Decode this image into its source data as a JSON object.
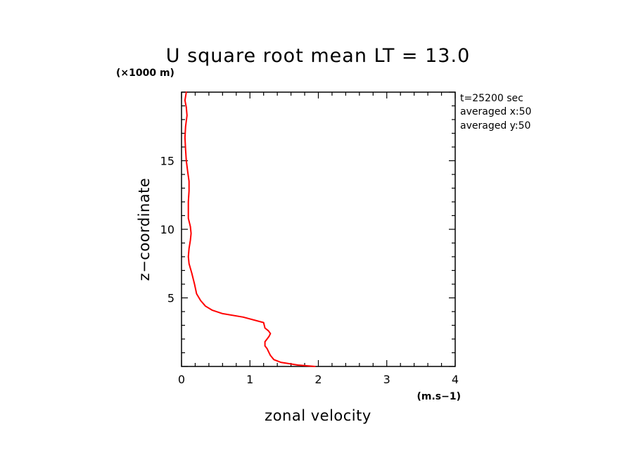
{
  "chart_data": {
    "type": "line",
    "title": "U square root mean LT = 13.0",
    "xlabel": "zonal velocity",
    "ylabel": "z−coordinate",
    "x_unit": "(m.s−1)",
    "y_unit": "(×1000 m)",
    "xlim": [
      0,
      4
    ],
    "ylim": [
      0,
      20
    ],
    "x_ticks": [
      "0",
      "1",
      "2",
      "3",
      "4"
    ],
    "y_ticks": [
      "5",
      "10",
      "15"
    ],
    "grid": false,
    "annotations": [
      "t=25200 sec",
      "averaged  x:50",
      "averaged  y:50"
    ],
    "series": [
      {
        "color": "#ff0000",
        "x": [
          1.95,
          1.7,
          1.45,
          1.35,
          1.3,
          1.27,
          1.25,
          1.22,
          1.22,
          1.25,
          1.28,
          1.3,
          1.27,
          1.22,
          1.2,
          0.9,
          0.6,
          0.45,
          0.35,
          0.28,
          0.22,
          0.19,
          0.15,
          0.11,
          0.1,
          0.11,
          0.13,
          0.14,
          0.13,
          0.1,
          0.1,
          0.1,
          0.11,
          0.11,
          0.09,
          0.07,
          0.06,
          0.05,
          0.06,
          0.08,
          0.07,
          0.05,
          0.07
        ],
        "y": [
          0.0,
          0.1,
          0.3,
          0.5,
          0.8,
          1.1,
          1.3,
          1.5,
          1.8,
          2.0,
          2.2,
          2.4,
          2.6,
          2.8,
          3.2,
          3.6,
          3.85,
          4.1,
          4.4,
          4.8,
          5.3,
          6.0,
          6.8,
          7.5,
          8.0,
          8.6,
          9.2,
          9.7,
          10.2,
          10.8,
          11.4,
          12.0,
          12.8,
          13.5,
          14.2,
          15.0,
          15.8,
          16.7,
          17.5,
          18.3,
          18.9,
          19.4,
          20.0
        ]
      }
    ]
  }
}
